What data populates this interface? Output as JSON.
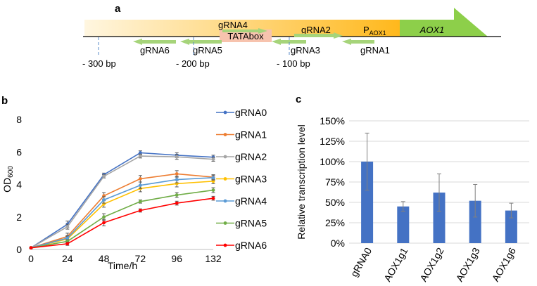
{
  "panels": {
    "a": "a",
    "b": "b",
    "c": "c"
  },
  "diagram": {
    "promoter_prefix": "P",
    "promoter_sub": "AOX1",
    "gene": "AOX1",
    "tatabox": "TATAbox",
    "guides": {
      "gRNA4": "gRNA4",
      "gRNA2": "gRNA2",
      "gRNA6": "gRNA6",
      "gRNA5": "gRNA5",
      "gRNA3": "gRNA3",
      "gRNA1": "gRNA1"
    },
    "distances": {
      "d300": "- 300 bp",
      "d200": "- 200 bp",
      "d100": "- 100 bp"
    },
    "colors": {
      "promoter_start": "#fff6e0",
      "promoter_end": "#ffb81c",
      "gene": "#8dcf4a",
      "tatabox": "#f7c3ae",
      "guide_arrow": "#a6d47a"
    }
  },
  "chart_data": [
    {
      "type": "line",
      "title": "",
      "xlabel": "Time/h",
      "ylabel_main": "OD",
      "ylabel_sub": "600",
      "categories": [
        "0",
        "24",
        "48",
        "72",
        "96",
        "132"
      ],
      "ylim": [
        0,
        8
      ],
      "yticks": [
        "0",
        "2",
        "4",
        "6",
        "8"
      ],
      "legend_position": "right",
      "series": [
        {
          "name": "gRNA0",
          "color": "#4472c4",
          "values": [
            0.1,
            1.55,
            4.6,
            5.95,
            5.8,
            5.68
          ],
          "errors": [
            0.05,
            0.2,
            0.1,
            0.12,
            0.15,
            0.12
          ]
        },
        {
          "name": "gRNA1",
          "color": "#ed7d31",
          "values": [
            0.1,
            0.8,
            3.3,
            4.35,
            4.65,
            4.45
          ],
          "errors": [
            0.05,
            0.2,
            0.2,
            0.2,
            0.2,
            0.15
          ]
        },
        {
          "name": "gRNA2",
          "color": "#a5a5a5",
          "values": [
            0.1,
            1.4,
            4.5,
            5.75,
            5.7,
            5.55
          ],
          "errors": [
            0.05,
            0.15,
            0.1,
            0.12,
            0.15,
            0.12
          ]
        },
        {
          "name": "gRNA3",
          "color": "#ffc000",
          "values": [
            0.1,
            0.65,
            2.8,
            3.75,
            4.05,
            4.2
          ],
          "errors": [
            0.05,
            0.15,
            0.2,
            0.2,
            0.2,
            0.15
          ]
        },
        {
          "name": "gRNA4",
          "color": "#5b9bd5",
          "values": [
            0.1,
            0.7,
            3.05,
            3.95,
            4.3,
            4.42
          ],
          "errors": [
            0.05,
            0.15,
            0.2,
            0.2,
            0.2,
            0.15
          ]
        },
        {
          "name": "gRNA5",
          "color": "#70ad47",
          "values": [
            0.1,
            0.5,
            2.0,
            2.95,
            3.35,
            3.65
          ],
          "errors": [
            0.05,
            0.1,
            0.2,
            0.1,
            0.15,
            0.15
          ]
        },
        {
          "name": "gRNA6",
          "color": "#ff0000",
          "values": [
            0.1,
            0.35,
            1.65,
            2.4,
            2.85,
            3.15
          ],
          "errors": [
            0.05,
            0.1,
            0.2,
            0.1,
            0.12,
            0.12
          ]
        }
      ]
    },
    {
      "type": "bar",
      "title": "",
      "xlabel": "",
      "ylabel": "Relative transcription level",
      "categories": [
        "gRNA0",
        "AOX1g1",
        "AOX1g2",
        "AOX1g3",
        "AOX1g6"
      ],
      "values": [
        100,
        45,
        62,
        52,
        40
      ],
      "errors": [
        35,
        6,
        23,
        20,
        9
      ],
      "ylim": [
        0,
        150
      ],
      "yticks": [
        "0%",
        "25%",
        "50%",
        "75%",
        "100%",
        "125%",
        "150%"
      ],
      "bar_color": "#4472c4"
    }
  ]
}
